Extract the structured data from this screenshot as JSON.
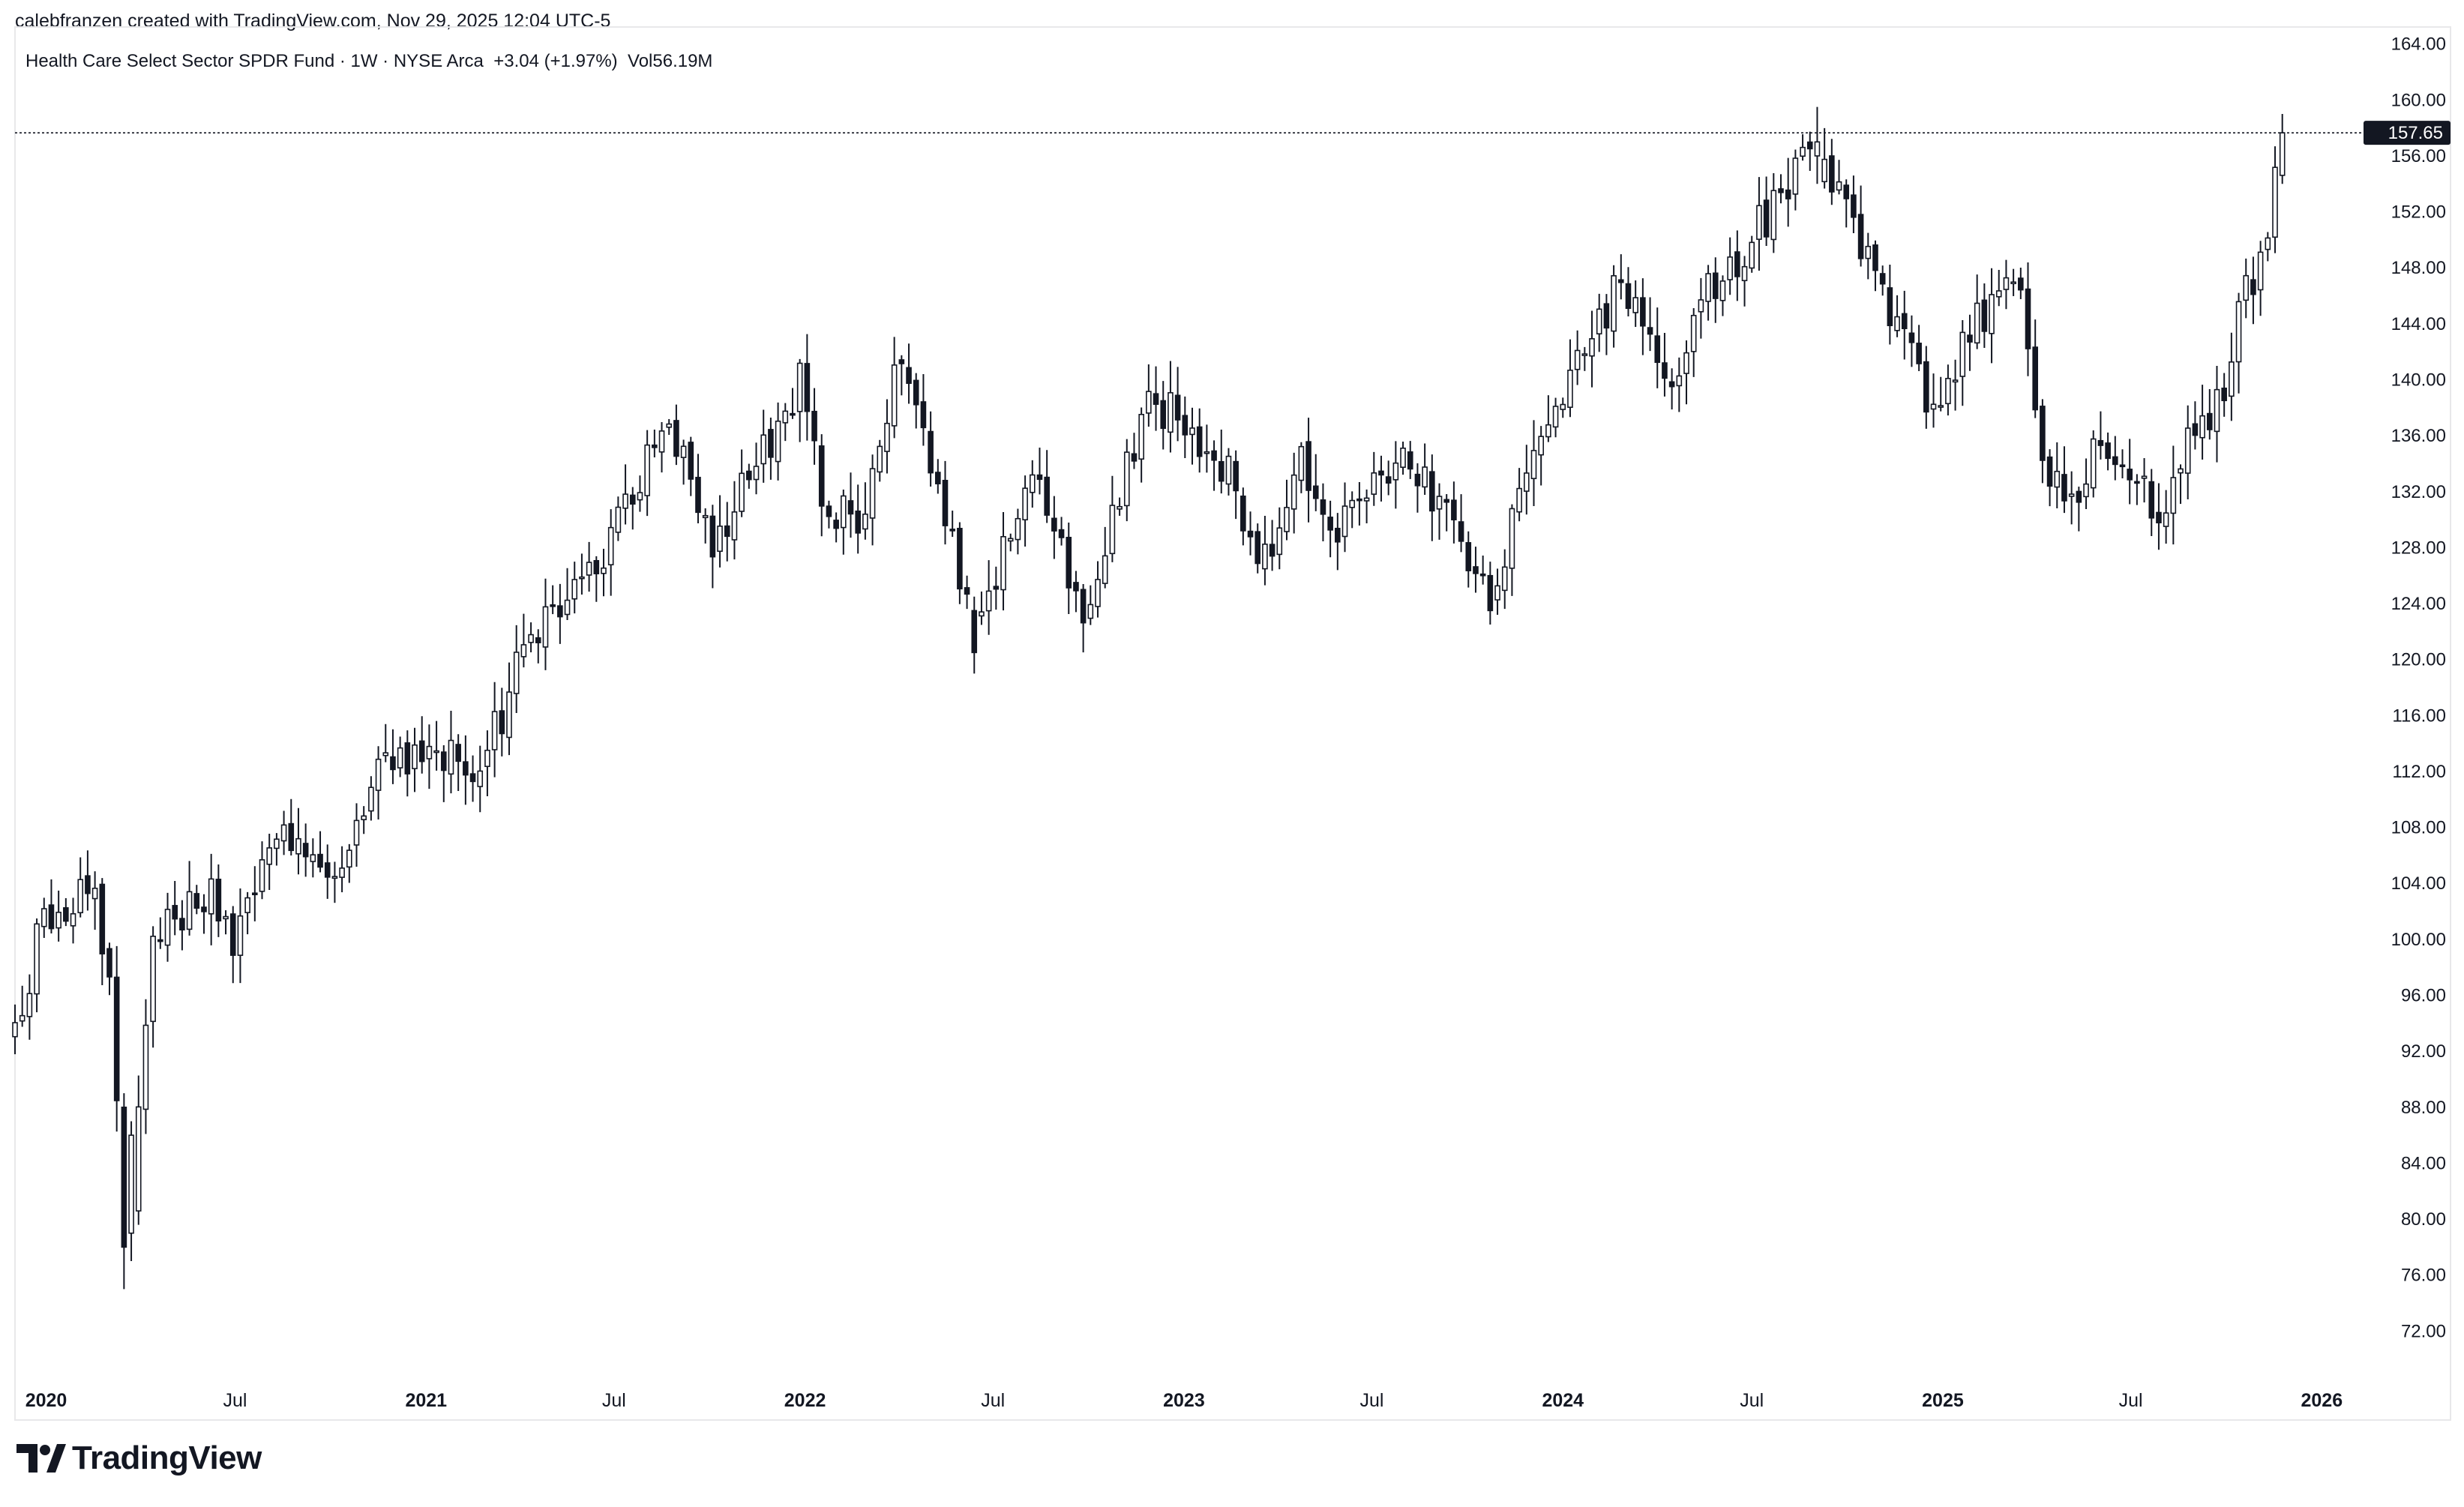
{
  "header": {
    "attribution": "calebfranzen created with TradingView.com, Nov 29, 2025 12:04 UTC-5",
    "legend": "Health Care Select Sector SPDR Fund · 1W · NYSE Arca  +3.04 (+1.97%)  Vol56.19M"
  },
  "branding": {
    "logo_text": "TradingView"
  },
  "chart_data": {
    "type": "candlestick",
    "symbol": "Health Care Select Sector SPDR Fund",
    "interval": "1W",
    "exchange": "NYSE Arca",
    "change": "+3.04",
    "change_pct": "+1.97%",
    "volume": "56.19M",
    "last_price": 157.65,
    "last_price_label": "157.65",
    "y_range": [
      68,
      165
    ],
    "y_ticks": [
      "164.00",
      "160.00",
      "156.00",
      "152.00",
      "148.00",
      "144.00",
      "140.00",
      "136.00",
      "132.00",
      "128.00",
      "124.00",
      "120.00",
      "116.00",
      "112.00",
      "108.00",
      "104.00",
      "100.00",
      "96.00",
      "92.00",
      "88.00",
      "84.00",
      "80.00",
      "76.00",
      "72.00"
    ],
    "x_range": [
      "2019-12-02",
      "2026-02-16"
    ],
    "x_ticks": [
      {
        "label": "2020",
        "date": "2020-01-01",
        "bold": true
      },
      {
        "label": "Jul",
        "date": "2020-07-01",
        "bold": false
      },
      {
        "label": "2021",
        "date": "2021-01-01",
        "bold": true
      },
      {
        "label": "Jul",
        "date": "2021-07-01",
        "bold": false
      },
      {
        "label": "2022",
        "date": "2022-01-01",
        "bold": true
      },
      {
        "label": "Jul",
        "date": "2022-07-01",
        "bold": false
      },
      {
        "label": "2023",
        "date": "2023-01-01",
        "bold": true
      },
      {
        "label": "Jul",
        "date": "2023-07-01",
        "bold": false
      },
      {
        "label": "2024",
        "date": "2024-01-01",
        "bold": true
      },
      {
        "label": "Jul",
        "date": "2024-07-01",
        "bold": false
      },
      {
        "label": "2025",
        "date": "2025-01-01",
        "bold": true
      },
      {
        "label": "Jul",
        "date": "2025-07-01",
        "bold": false
      },
      {
        "label": "2026",
        "date": "2026-01-01",
        "bold": true
      }
    ],
    "start_date": "2019-12-02",
    "weeks": 313,
    "anchors": [
      [
        "2019-12-02",
        93
      ],
      [
        "2019-12-30",
        102
      ],
      [
        "2020-02-17",
        104
      ],
      [
        "2020-03-02",
        97
      ],
      [
        "2020-03-16",
        82
      ],
      [
        "2020-03-23",
        80
      ],
      [
        "2020-04-13",
        100
      ],
      [
        "2020-06-08",
        103
      ],
      [
        "2020-06-29",
        100
      ],
      [
        "2020-08-10",
        108
      ],
      [
        "2020-09-21",
        104
      ],
      [
        "2020-11-02",
        108
      ],
      [
        "2020-11-16",
        112
      ],
      [
        "2021-01-04",
        114
      ],
      [
        "2021-02-22",
        112
      ],
      [
        "2021-04-12",
        122
      ],
      [
        "2021-06-07",
        126
      ],
      [
        "2021-08-16",
        136
      ],
      [
        "2021-09-13",
        133
      ],
      [
        "2021-10-04",
        128
      ],
      [
        "2021-12-27",
        140
      ],
      [
        "2022-01-17",
        132
      ],
      [
        "2022-02-21",
        129
      ],
      [
        "2022-04-04",
        142
      ],
      [
        "2022-05-16",
        131
      ],
      [
        "2022-06-13",
        122
      ],
      [
        "2022-08-08",
        133
      ],
      [
        "2022-09-26",
        123
      ],
      [
        "2022-11-28",
        139
      ],
      [
        "2023-02-20",
        133
      ],
      [
        "2023-03-13",
        126
      ],
      [
        "2023-04-24",
        134
      ],
      [
        "2023-05-29",
        130
      ],
      [
        "2023-07-31",
        135
      ],
      [
        "2023-10-23",
        125
      ],
      [
        "2023-12-25",
        138
      ],
      [
        "2024-02-26",
        147
      ],
      [
        "2024-04-15",
        140
      ],
      [
        "2024-05-20",
        146
      ],
      [
        "2024-08-26",
        156
      ],
      [
        "2024-09-09",
        155
      ],
      [
        "2024-11-11",
        145
      ],
      [
        "2024-12-23",
        138
      ],
      [
        "2025-02-24",
        147
      ],
      [
        "2025-03-17",
        145
      ],
      [
        "2025-04-07",
        134
      ],
      [
        "2025-05-12",
        131
      ],
      [
        "2025-06-02",
        136
      ],
      [
        "2025-07-14",
        132
      ],
      [
        "2025-08-04",
        131
      ],
      [
        "2025-09-01",
        137
      ],
      [
        "2025-09-29",
        139
      ],
      [
        "2025-10-13",
        145
      ],
      [
        "2025-11-03",
        148
      ],
      [
        "2025-11-24",
        157.65
      ]
    ],
    "highlight_bars": [
      {
        "date": "2020-03-16",
        "open": 88,
        "high": 89,
        "low": 75,
        "close": 78
      },
      {
        "date": "2020-03-23",
        "open": 79,
        "high": 87,
        "low": 77,
        "close": 86
      },
      {
        "date": "2022-06-13",
        "open": 123.5,
        "high": 124.5,
        "low": 119,
        "close": 120.5
      },
      {
        "date": "2023-10-23",
        "open": 126,
        "high": 127,
        "low": 122.5,
        "close": 123.5
      },
      {
        "date": "2024-09-02",
        "open": 156,
        "high": 159.5,
        "low": 154,
        "close": 157
      },
      {
        "date": "2025-11-24",
        "open": 154.61,
        "high": 159,
        "low": 154,
        "close": 157.65
      }
    ]
  }
}
